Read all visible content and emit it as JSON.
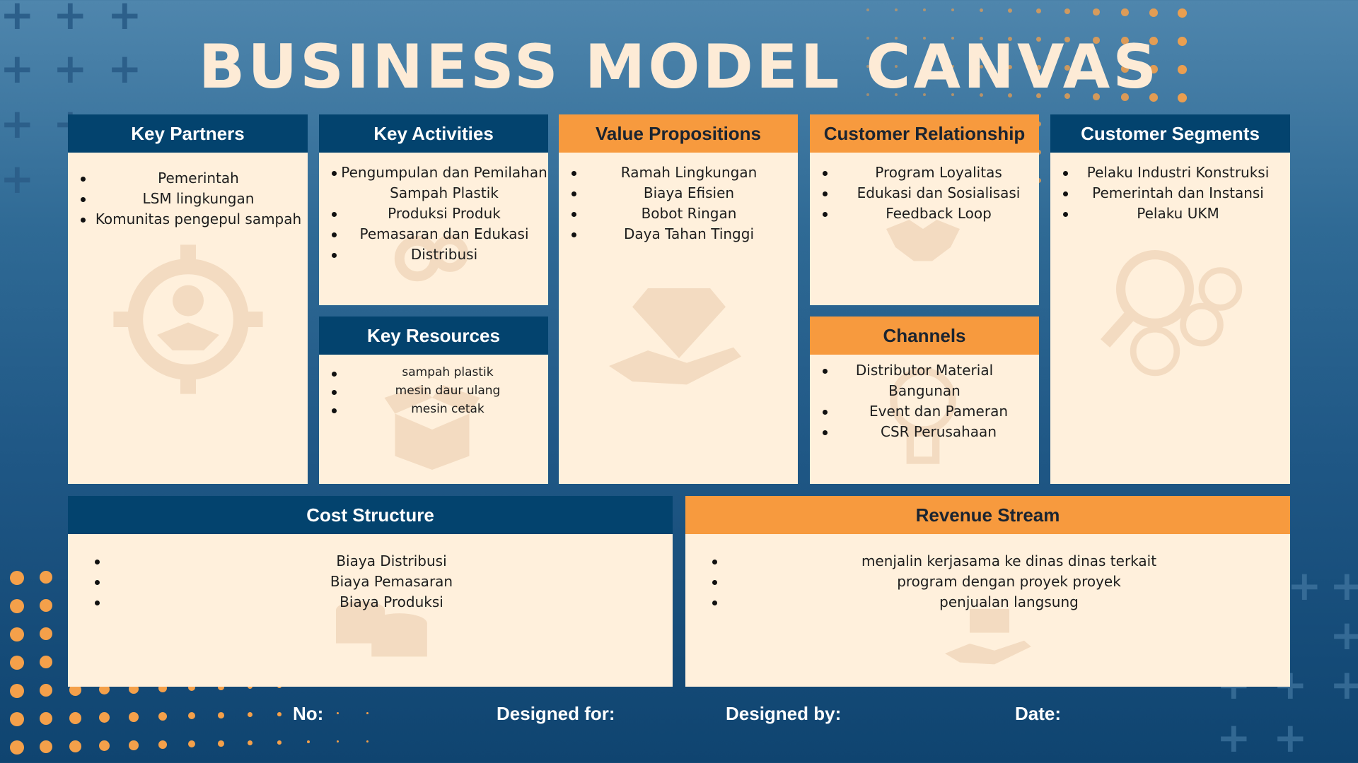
{
  "title": "BUSINESS MODEL CANVAS",
  "colors": {
    "navy": "#03436e",
    "orange": "#f79a3e",
    "panel": "#fff0dc",
    "title": "#fdebd6"
  },
  "key_partners": {
    "heading": "Key Partners",
    "items": [
      "Pemerintah",
      "LSM lingkungan",
      "Komunitas pengepul sampah"
    ],
    "icon": "handshake-gear-icon"
  },
  "key_activities": {
    "heading": "Key Activities",
    "items": [
      "Pengumpulan dan Pemilahan Sampah Plastik",
      "Produksi Produk",
      "Pemasaran dan Edukasi",
      "Distribusi"
    ],
    "icon": "gears-icon"
  },
  "key_resources": {
    "heading": "Key Resources",
    "items": [
      "sampah plastik",
      "mesin daur ulang",
      "mesin cetak"
    ],
    "icon": "open-box-icon"
  },
  "value_propositions": {
    "heading": "Value Propositions",
    "items": [
      "Ramah Lingkungan",
      "Biaya Efisien",
      "Bobot Ringan",
      "Daya Tahan Tinggi"
    ],
    "icon": "diamond-hand-icon"
  },
  "customer_relationship": {
    "heading": "Customer Relationship",
    "items": [
      "Program Loyalitas",
      "Edukasi dan Sosialisasi",
      "Feedback Loop"
    ],
    "icon": "handshake-icon"
  },
  "channels": {
    "heading": "Channels",
    "items": [
      "Distributor Material Bangunan",
      "Event dan Pameran",
      "CSR Perusahaan"
    ],
    "icon": "lightbulb-icon"
  },
  "customer_segments": {
    "heading": "Customer Segments",
    "items": [
      "Pelaku Industri Konstruksi",
      "Pemerintah dan Instansi",
      "Pelaku UKM"
    ],
    "icon": "people-search-icon"
  },
  "cost_structure": {
    "heading": "Cost Structure",
    "items": [
      "Biaya Distribusi",
      "Biaya Pemasaran",
      "Biaya Produksi"
    ],
    "icon": "coins-icon"
  },
  "revenue_stream": {
    "heading": "Revenue Stream",
    "items": [
      "menjalin kerjasama ke dinas dinas terkait",
      "program dengan proyek proyek",
      "penjualan langsung"
    ],
    "icon": "money-hand-icon"
  },
  "footer": {
    "no_label": "No:",
    "designed_for_label": "Designed for:",
    "designed_by_label": "Designed by:",
    "date_label": "Date:"
  }
}
